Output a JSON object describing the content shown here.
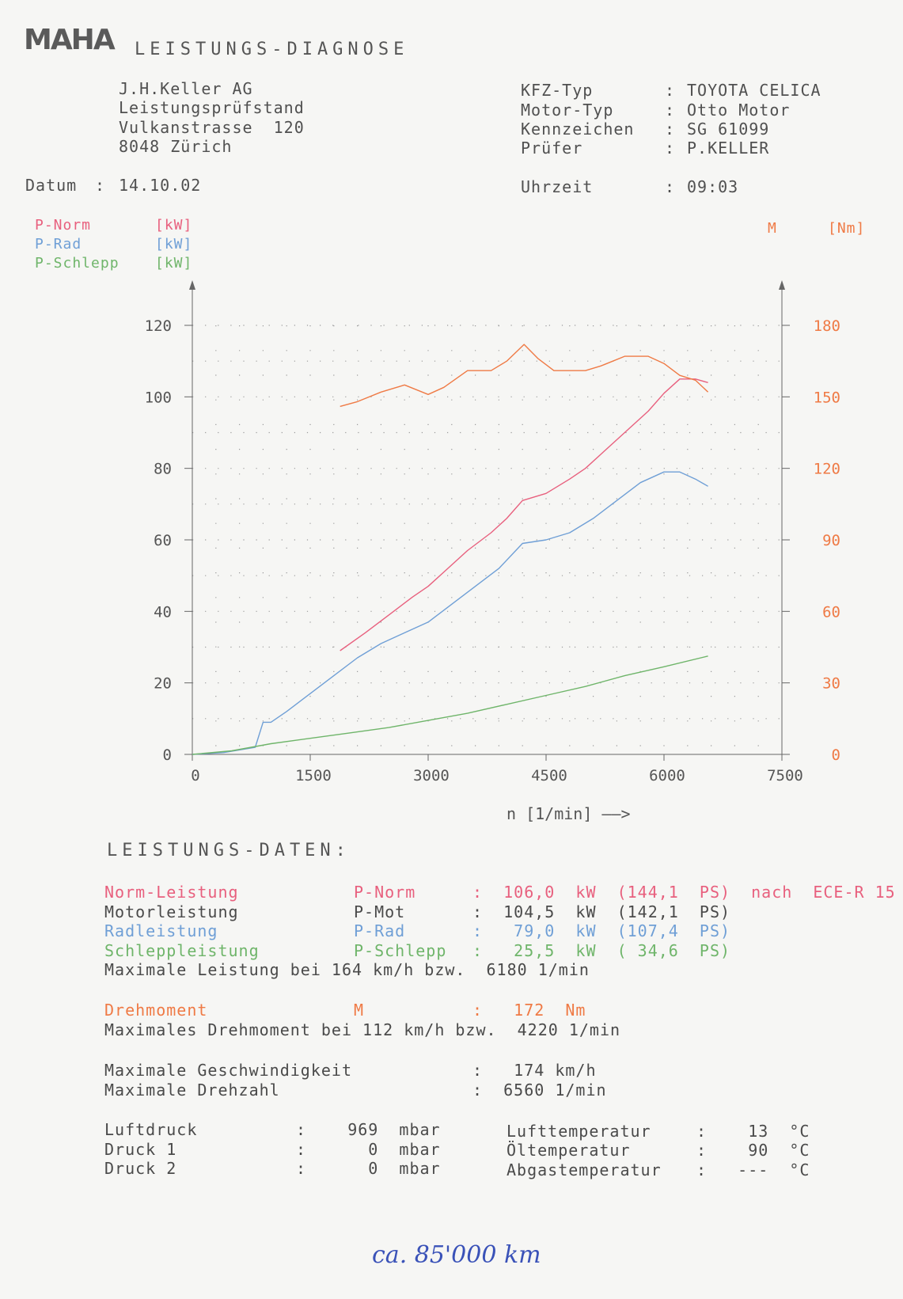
{
  "header": {
    "logo": "MAHA",
    "title": "LEISTUNGS-DIAGNOSE",
    "company": [
      "J.H.Keller AG",
      "Leistungsprüfstand",
      "Vulkanstrasse  120",
      "8048 Zürich"
    ],
    "fields": [
      {
        "label": "KFZ-Typ",
        "value": "TOYOTA CELICA"
      },
      {
        "label": "Motor-Typ",
        "value": "Otto Motor"
      },
      {
        "label": "Kennzeichen",
        "value": "SG 61099"
      },
      {
        "label": "Prüfer",
        "value": "P.KELLER"
      }
    ],
    "datum_label": "Datum",
    "datum": "14.10.02",
    "uhrzeit_label": "Uhrzeit",
    "uhrzeit": "09:03"
  },
  "legend": {
    "left": [
      {
        "name": "P-Norm",
        "unit": "[kW]",
        "color": "#e8607e"
      },
      {
        "name": "P-Rad",
        "unit": "[kW]",
        "color": "#6f9fd6"
      },
      {
        "name": "P-Schlepp",
        "unit": "[kW]",
        "color": "#6fb56a"
      }
    ],
    "right": {
      "name": "M",
      "unit": "[Nm]",
      "color": "#ef7a45"
    }
  },
  "chart_data": {
    "type": "line",
    "xlabel": "n [1/min] ——>",
    "xlim": [
      0,
      7500
    ],
    "xticks": [
      0,
      1500,
      3000,
      4500,
      6000,
      7500
    ],
    "ylim_left": [
      0,
      120
    ],
    "yticks_left": [
      0,
      20,
      40,
      60,
      80,
      100,
      120
    ],
    "ylim_right": [
      0,
      180
    ],
    "yticks_right": [
      0,
      30,
      60,
      90,
      120,
      150,
      180
    ],
    "grid": true,
    "series": [
      {
        "name": "P-Norm",
        "axis": "left",
        "color": "#e8607e",
        "x": [
          1880,
          2200,
          2500,
          2800,
          3000,
          3200,
          3500,
          3800,
          4000,
          4200,
          4500,
          4800,
          5000,
          5200,
          5500,
          5800,
          6000,
          6200,
          6400,
          6560
        ],
        "y": [
          29,
          34,
          39,
          44,
          47,
          51,
          57,
          62,
          66,
          71,
          73,
          77,
          80,
          84,
          90,
          96,
          101,
          105,
          105,
          104
        ]
      },
      {
        "name": "P-Rad",
        "axis": "left",
        "color": "#6f9fd6",
        "x": [
          0,
          400,
          800,
          900,
          1000,
          1200,
          1500,
          1800,
          2100,
          2400,
          2700,
          3000,
          3300,
          3600,
          3900,
          4200,
          4500,
          4800,
          5100,
          5400,
          5700,
          6000,
          6200,
          6400,
          6560
        ],
        "y": [
          0,
          0.5,
          2,
          9,
          9,
          12,
          17,
          22,
          27,
          31,
          34,
          37,
          42,
          47,
          52,
          59,
          60,
          62,
          66,
          71,
          76,
          79,
          79,
          77,
          75
        ]
      },
      {
        "name": "P-Schlepp",
        "axis": "left",
        "color": "#6fb56a",
        "x": [
          0,
          500,
          1000,
          1500,
          2000,
          2500,
          3000,
          3500,
          4000,
          4500,
          5000,
          5500,
          6000,
          6560
        ],
        "y": [
          0,
          1,
          3,
          4.5,
          6,
          7.5,
          9.5,
          11.5,
          14,
          16.5,
          19,
          22,
          24.5,
          27.5
        ]
      },
      {
        "name": "M",
        "axis": "right",
        "color": "#ef7a45",
        "x": [
          1880,
          2100,
          2400,
          2700,
          3000,
          3200,
          3500,
          3800,
          4000,
          4220,
          4400,
          4600,
          5000,
          5200,
          5500,
          5800,
          6000,
          6200,
          6400,
          6560
        ],
        "y": [
          146,
          148,
          152,
          155,
          151,
          154,
          161,
          161,
          165,
          172,
          166,
          161,
          161,
          163,
          167,
          167,
          164,
          159,
          157,
          152
        ]
      }
    ]
  },
  "daten": {
    "title": "LEISTUNGS-DATEN:",
    "rows": [
      {
        "label": "Norm-Leistung",
        "sym": "P-Norm",
        "value": ":  106,0  kW  (144,1  PS)  nach  ECE-R 15",
        "color": "#e8607e"
      },
      {
        "label": "Motorleistung",
        "sym": "P-Mot",
        "value": ":  104,5  kW  (142,1  PS)",
        "color": "#4a4a4a"
      },
      {
        "label": "Radleistung",
        "sym": "P-Rad",
        "value": ":   79,0  kW  (107,4  PS)",
        "color": "#6f9fd6"
      },
      {
        "label": "Schleppleistung",
        "sym": "P-Schlepp",
        "value": ":   25,5  kW  ( 34,6  PS)",
        "color": "#6fb56a"
      }
    ],
    "max_leistung": "Maximale Leistung bei 164 km/h bzw.  6180 1/min",
    "drehmoment": {
      "label": "Drehmoment",
      "sym": "M",
      "value": ":   172  Nm",
      "color": "#ef7a45"
    },
    "max_drehmoment": "Maximales Drehmoment bei 112 km/h bzw.  4220 1/min",
    "max_geschw_label": "Maximale Geschwindigkeit",
    "max_geschw_value": ":   174 km/h",
    "max_drehzahl_label": "Maximale Drehzahl",
    "max_drehzahl_value": ":  6560 1/min",
    "ambient_left": [
      {
        "label": "Luftdruck",
        "value": ":    969  mbar"
      },
      {
        "label": "Druck 1",
        "value": ":      0  mbar"
      },
      {
        "label": "Druck 2",
        "value": ":      0  mbar"
      }
    ],
    "ambient_right": [
      {
        "label": "Lufttemperatur",
        "value": ":    13  °C"
      },
      {
        "label": "Öltemperatur",
        "value": ":    90  °C"
      },
      {
        "label": "Abgastemperatur",
        "value": ":   ---  °C"
      }
    ]
  },
  "handwriting": "ca. 85'000 km"
}
